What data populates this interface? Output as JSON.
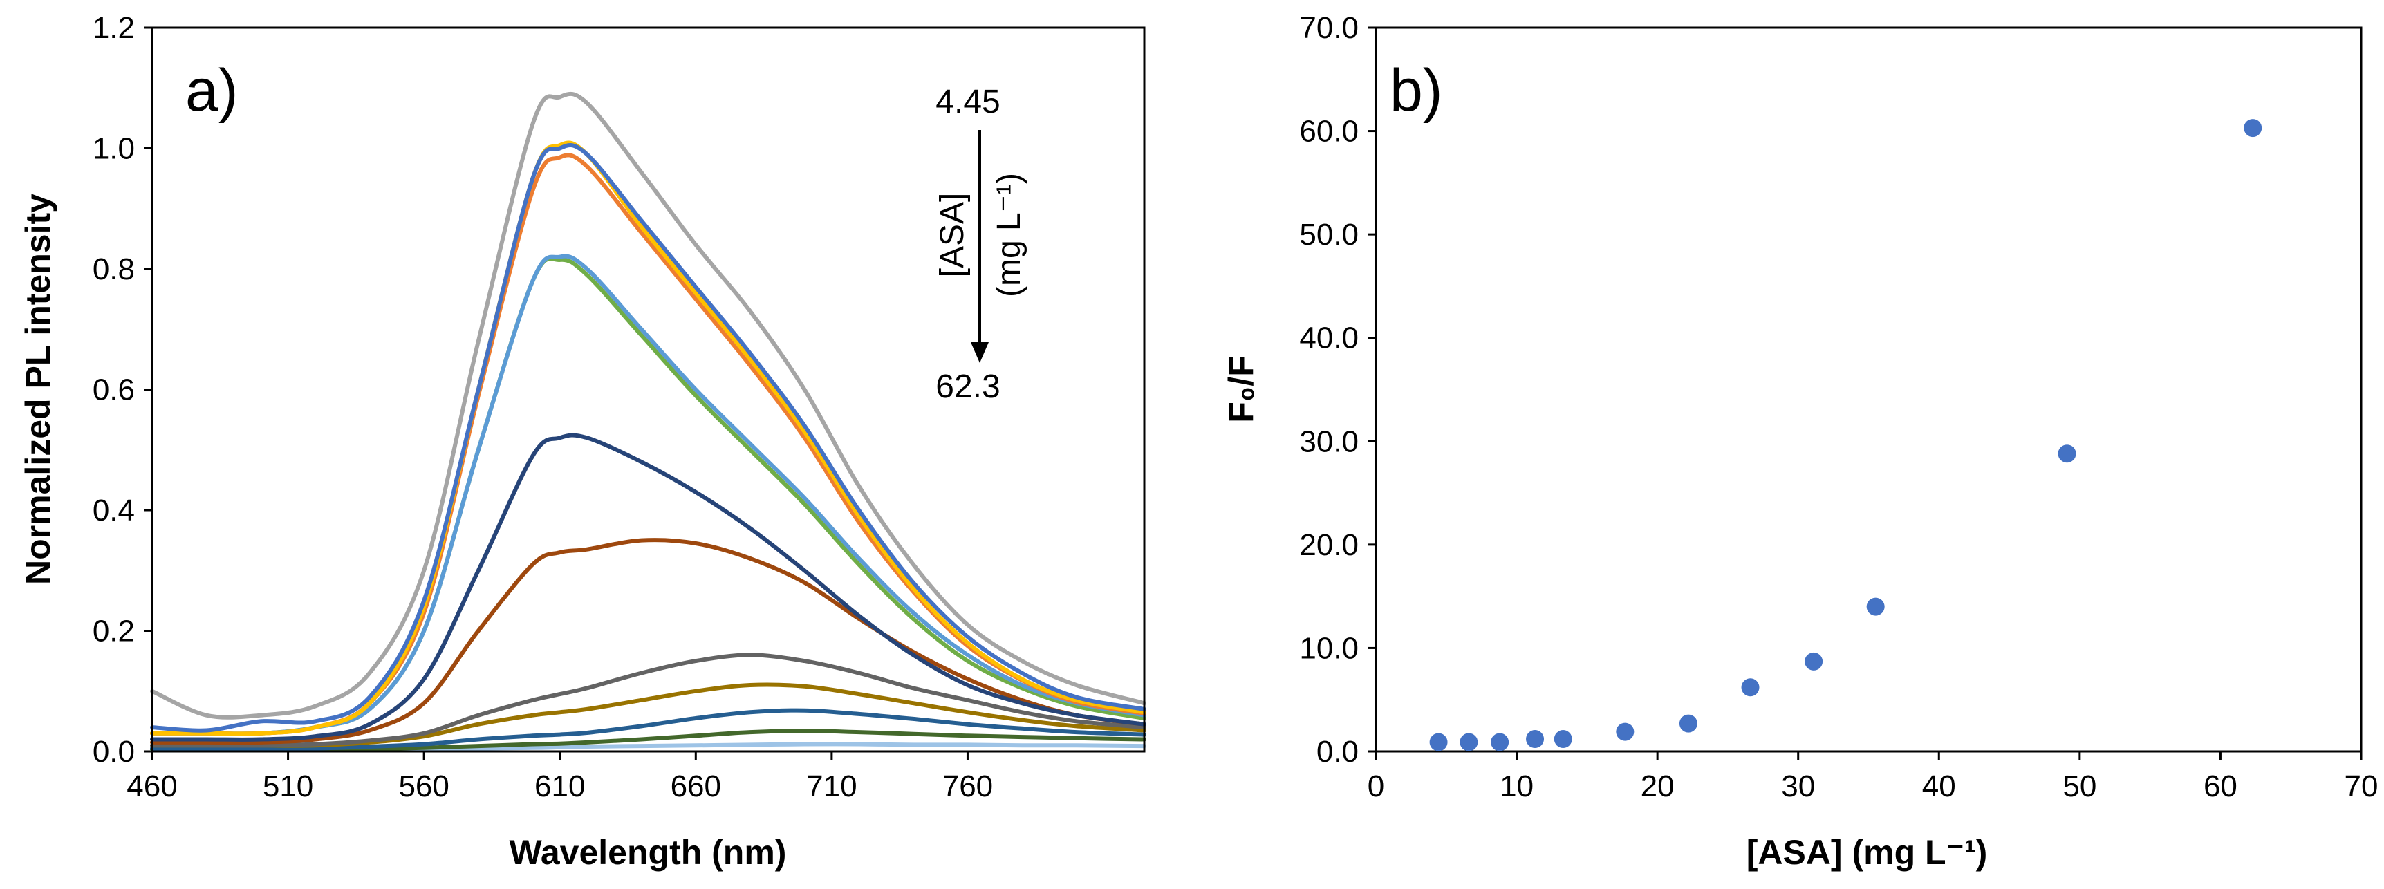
{
  "chart_data": [
    {
      "type": "line",
      "panel_label": "a)",
      "xlabel": "Wavelength (nm)",
      "ylabel": "Normalized PL intensity",
      "xlim": [
        460,
        825
      ],
      "ylim": [
        0,
        1.2
      ],
      "x_ticks": [
        "460",
        "510",
        "560",
        "610",
        "660",
        "710",
        "760"
      ],
      "y_ticks": [
        "0.0",
        "0.2",
        "0.4",
        "0.6",
        "0.8",
        "1.0",
        "1.2"
      ],
      "annotation": {
        "top_value": "4.45",
        "bottom_value": "62.3",
        "label_line1": "[ASA]",
        "label_line2": "(mg L⁻¹)"
      },
      "x": [
        460,
        480,
        500,
        520,
        540,
        560,
        580,
        600,
        610,
        620,
        640,
        660,
        680,
        700,
        720,
        740,
        760,
        780,
        800,
        825
      ],
      "series": [
        {
          "name": "gray",
          "color": "#A5A5A5",
          "values": [
            0.1,
            0.06,
            0.06,
            0.075,
            0.13,
            0.3,
            0.68,
            1.04,
            1.085,
            1.075,
            0.96,
            0.84,
            0.73,
            0.6,
            0.44,
            0.31,
            0.21,
            0.15,
            0.11,
            0.08
          ]
        },
        {
          "name": "blue",
          "color": "#4472C4",
          "values": [
            0.04,
            0.035,
            0.05,
            0.05,
            0.09,
            0.25,
            0.6,
            0.95,
            1.0,
            0.99,
            0.88,
            0.77,
            0.66,
            0.54,
            0.4,
            0.28,
            0.19,
            0.13,
            0.09,
            0.07
          ]
        },
        {
          "name": "gold",
          "color": "#FFC000",
          "values": [
            0.03,
            0.03,
            0.03,
            0.04,
            0.08,
            0.24,
            0.6,
            0.95,
            1.005,
            0.99,
            0.87,
            0.76,
            0.65,
            0.53,
            0.39,
            0.27,
            0.18,
            0.12,
            0.085,
            0.065
          ]
        },
        {
          "name": "orange",
          "color": "#ED7D31",
          "values": [
            0.03,
            0.03,
            0.03,
            0.04,
            0.08,
            0.23,
            0.59,
            0.93,
            0.985,
            0.97,
            0.86,
            0.75,
            0.64,
            0.52,
            0.38,
            0.265,
            0.175,
            0.118,
            0.082,
            0.063
          ]
        },
        {
          "name": "light-blue",
          "color": "#5B9BD5",
          "values": [
            0.03,
            0.03,
            0.03,
            0.04,
            0.07,
            0.2,
            0.5,
            0.78,
            0.82,
            0.8,
            0.7,
            0.6,
            0.51,
            0.42,
            0.32,
            0.23,
            0.16,
            0.11,
            0.08,
            0.06
          ]
        },
        {
          "name": "green",
          "color": "#70AD47",
          "values": [
            0.03,
            0.03,
            0.03,
            0.04,
            0.07,
            0.2,
            0.5,
            0.78,
            0.815,
            0.79,
            0.69,
            0.59,
            0.5,
            0.41,
            0.31,
            0.22,
            0.15,
            0.105,
            0.075,
            0.055
          ]
        },
        {
          "name": "navy",
          "color": "#264478",
          "values": [
            0.02,
            0.02,
            0.02,
            0.025,
            0.045,
            0.12,
            0.3,
            0.49,
            0.52,
            0.52,
            0.48,
            0.43,
            0.37,
            0.3,
            0.225,
            0.16,
            0.11,
            0.08,
            0.06,
            0.045
          ]
        },
        {
          "name": "brown",
          "color": "#9E480E",
          "values": [
            0.015,
            0.015,
            0.015,
            0.02,
            0.035,
            0.08,
            0.2,
            0.31,
            0.33,
            0.335,
            0.35,
            0.345,
            0.32,
            0.28,
            0.22,
            0.165,
            0.12,
            0.085,
            0.06,
            0.045
          ]
        },
        {
          "name": "dark-gray",
          "color": "#636363",
          "values": [
            0.01,
            0.01,
            0.01,
            0.012,
            0.018,
            0.03,
            0.06,
            0.085,
            0.095,
            0.105,
            0.13,
            0.15,
            0.16,
            0.15,
            0.13,
            0.105,
            0.085,
            0.065,
            0.05,
            0.04
          ]
        },
        {
          "name": "olive",
          "color": "#997300",
          "values": [
            0.01,
            0.01,
            0.01,
            0.01,
            0.015,
            0.025,
            0.045,
            0.06,
            0.065,
            0.07,
            0.085,
            0.1,
            0.11,
            0.108,
            0.095,
            0.08,
            0.065,
            0.052,
            0.042,
            0.035
          ]
        },
        {
          "name": "dark-blue",
          "color": "#255E91",
          "values": [
            0.005,
            0.005,
            0.005,
            0.005,
            0.008,
            0.012,
            0.02,
            0.026,
            0.028,
            0.031,
            0.042,
            0.055,
            0.065,
            0.068,
            0.062,
            0.054,
            0.045,
            0.038,
            0.032,
            0.028
          ]
        },
        {
          "name": "dark-green",
          "color": "#43682B",
          "values": [
            0.003,
            0.003,
            0.003,
            0.003,
            0.004,
            0.006,
            0.009,
            0.012,
            0.013,
            0.015,
            0.02,
            0.026,
            0.032,
            0.034,
            0.032,
            0.029,
            0.026,
            0.024,
            0.022,
            0.02
          ]
        },
        {
          "name": "pale-blue",
          "color": "#9DC3E6",
          "values": [
            0.002,
            0.002,
            0.002,
            0.002,
            0.003,
            0.004,
            0.005,
            0.006,
            0.007,
            0.008,
            0.009,
            0.01,
            0.011,
            0.012,
            0.012,
            0.011,
            0.011,
            0.01,
            0.01,
            0.009
          ]
        }
      ]
    },
    {
      "type": "scatter",
      "panel_label": "b)",
      "xlabel": "[ASA] (mg L⁻¹)",
      "ylabel": "F₀/F",
      "xlim": [
        0,
        70
      ],
      "ylim": [
        0,
        70
      ],
      "x_ticks": [
        "0",
        "10",
        "20",
        "30",
        "40",
        "50",
        "60",
        "70"
      ],
      "y_ticks": [
        "0.0",
        "10.0",
        "20.0",
        "30.0",
        "40.0",
        "50.0",
        "60.0",
        "70.0"
      ],
      "marker_color": "#4472C4",
      "x": [
        4.45,
        6.6,
        8.8,
        11.3,
        13.3,
        17.7,
        22.2,
        26.6,
        31.1,
        35.5,
        49.1,
        62.3
      ],
      "y": [
        0.9,
        0.9,
        0.9,
        1.2,
        1.2,
        1.9,
        2.7,
        6.2,
        8.7,
        14.0,
        28.8,
        60.3
      ]
    }
  ]
}
